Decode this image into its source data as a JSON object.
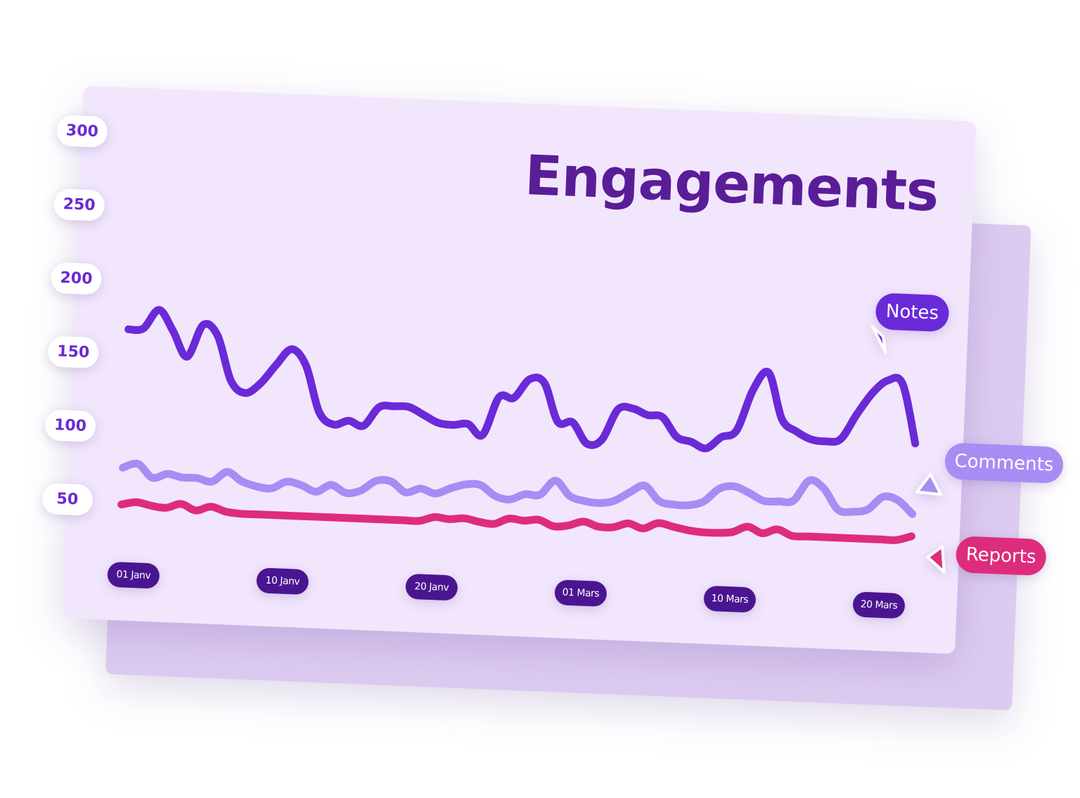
{
  "chart_data": {
    "type": "line",
    "title": "Engagements",
    "categories": [
      null,
      "01 Janv",
      null,
      null,
      null,
      null,
      null,
      null,
      null,
      null,
      null,
      "10 Janv",
      null,
      null,
      null,
      null,
      null,
      null,
      null,
      null,
      null,
      "20 Janv",
      null,
      null,
      null,
      null,
      null,
      null,
      null,
      null,
      null,
      "01 Mars",
      null,
      null,
      null,
      null,
      null,
      null,
      null,
      null,
      null,
      "10 Mars",
      null,
      null,
      null,
      null,
      null,
      null,
      null,
      null,
      null,
      "20 Mars",
      null,
      null
    ],
    "ylim": [
      50,
      300
    ],
    "yticks": [
      50,
      100,
      150,
      200,
      250,
      300
    ],
    "series": [
      {
        "name": "Notes",
        "color": "#6a2ad8",
        "values": [
          167,
          168,
          181,
          167,
          150,
          172,
          165,
          135,
          127,
          134,
          147,
          158,
          147,
          116,
          108,
          111,
          108,
          121,
          122,
          122,
          117,
          112,
          111,
          112,
          105,
          131,
          131,
          144,
          142,
          116,
          116,
          102,
          105,
          126,
          127,
          123,
          122,
          109,
          106,
          102,
          110,
          115,
          143,
          155,
          124,
          116,
          111,
          110,
          112,
          129,
          144,
          153,
          151,
          111
        ]
      },
      {
        "name": "Comments",
        "color": "#a88cf4",
        "values": [
          73,
          76,
          67,
          70,
          68,
          68,
          66,
          73,
          67,
          64,
          63,
          68,
          66,
          62,
          67,
          62,
          64,
          71,
          71,
          64,
          67,
          64,
          68,
          71,
          71,
          64,
          62,
          66,
          66,
          76,
          66,
          63,
          62,
          64,
          70,
          75,
          65,
          63,
          63,
          66,
          75,
          77,
          73,
          68,
          68,
          69,
          83,
          78,
          64,
          63,
          65,
          74,
          72,
          63
        ]
      },
      {
        "name": "Reports",
        "color": "#de2c7c",
        "values": [
          48,
          50,
          48,
          47,
          50,
          46,
          49,
          46,
          45,
          45,
          45,
          45,
          45,
          45,
          45,
          45,
          45,
          45,
          45,
          45,
          45,
          48,
          47,
          48,
          46,
          45,
          49,
          48,
          49,
          45,
          46,
          49,
          46,
          46,
          49,
          46,
          50,
          48,
          46,
          45,
          45,
          46,
          50,
          46,
          49,
          45,
          45,
          45,
          45,
          45,
          45,
          45,
          45,
          48
        ]
      }
    ]
  }
}
